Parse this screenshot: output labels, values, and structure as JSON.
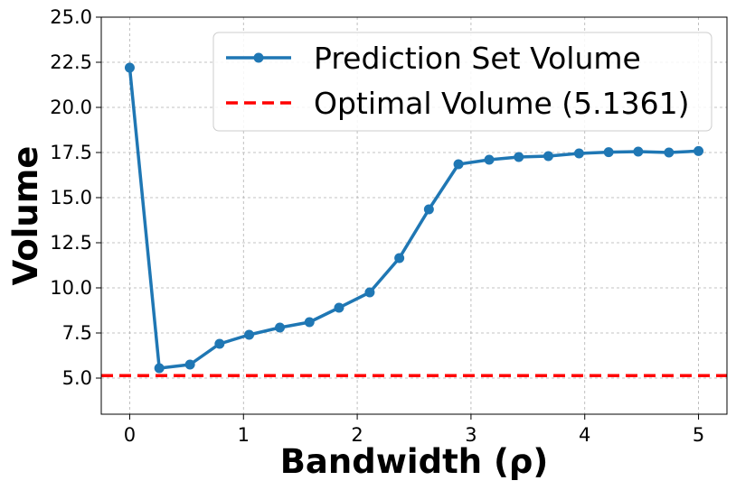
{
  "chart_data": {
    "type": "line",
    "xlabel": "Bandwidth (ρ)",
    "ylabel": "Volume",
    "xlim": [
      -0.25,
      5.25
    ],
    "ylim": [
      3.0,
      25.0
    ],
    "xticks": [
      "0",
      "1",
      "2",
      "3",
      "4",
      "5"
    ],
    "yticks": [
      "5.0",
      "7.5",
      "10.0",
      "12.5",
      "15.0",
      "17.5",
      "20.0",
      "22.5",
      "25.0"
    ],
    "grid": true,
    "legend_position": "upper-right",
    "series": [
      {
        "name": "Prediction Set Volume",
        "color": "#1f77b4",
        "marker": "circle",
        "x": [
          0.0,
          0.26,
          0.53,
          0.79,
          1.05,
          1.32,
          1.58,
          1.84,
          2.11,
          2.37,
          2.63,
          2.89,
          3.16,
          3.42,
          3.68,
          3.95,
          4.21,
          4.47,
          4.74,
          5.0
        ],
        "y": [
          22.2,
          5.55,
          5.75,
          6.9,
          7.4,
          7.8,
          8.1,
          8.9,
          9.75,
          11.65,
          14.35,
          16.85,
          17.1,
          17.25,
          17.3,
          17.45,
          17.52,
          17.55,
          17.5,
          17.58
        ]
      },
      {
        "name": "Optimal Volume (5.1361)",
        "color": "#ff0000",
        "style": "dashed",
        "y_constant": 5.1361
      }
    ]
  }
}
